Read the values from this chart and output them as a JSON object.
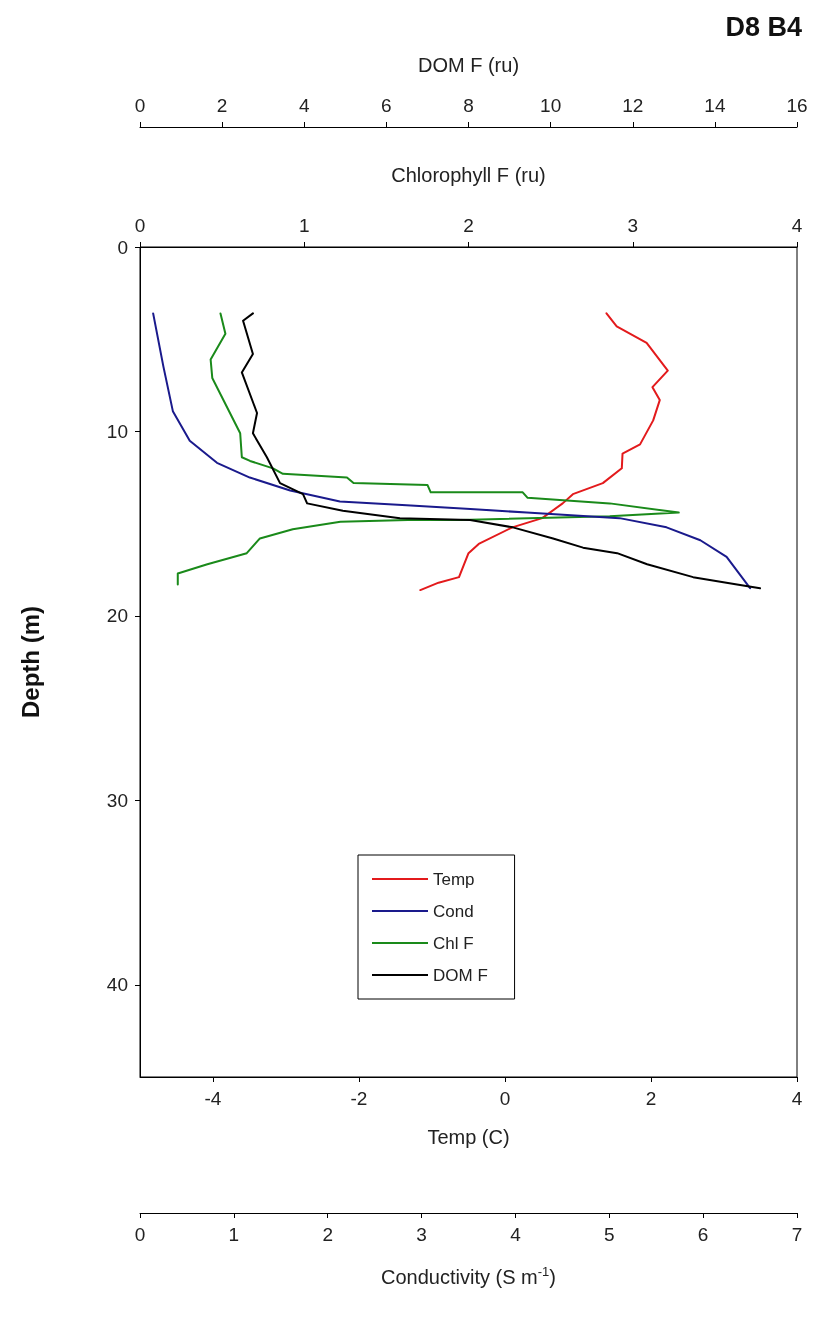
{
  "chart_data": [
    {
      "type": "line",
      "title": "D8 B4",
      "ylabel": "Depth (m)",
      "ylim": [
        45,
        0
      ],
      "yticks": [
        0,
        10,
        20,
        30,
        40
      ],
      "xlabel": "Temp (C)",
      "xlim": [
        -5,
        4
      ],
      "xticks": [
        -4,
        -2,
        0,
        2,
        4
      ],
      "x2label": "Chlorophyll F (ru)",
      "x2lim": [
        0,
        4
      ],
      "x2ticks": [
        0,
        1,
        2,
        3,
        4
      ],
      "legend": "bottom",
      "series": [
        {
          "name": "Temp",
          "color": "#e31a1c",
          "x": [
            1.39,
            1.53,
            1.94,
            2.23,
            2.02,
            2.12,
            2.03,
            1.85,
            1.61,
            1.6,
            1.34,
            0.93,
            0.79,
            0.51,
            0.1,
            -0.36,
            -0.5,
            -0.63,
            -0.91,
            -1.16
          ],
          "values": [
            3.6,
            4.3,
            5.2,
            6.7,
            7.6,
            8.3,
            9.4,
            10.7,
            11.2,
            12.0,
            12.8,
            13.4,
            13.9,
            14.7,
            15.2,
            16.1,
            16.6,
            17.9,
            18.2,
            18.6
          ]
        },
        {
          "name": "Chl F",
          "color": "#1a8a1a",
          "axis": "x2",
          "x": [
            0.49,
            0.52,
            0.43,
            0.44,
            0.61,
            0.62,
            0.67,
            0.81,
            0.87,
            1.26,
            1.3,
            1.75,
            1.77,
            2.01,
            2.33,
            2.36,
            2.86,
            3.28,
            2.86,
            1.95,
            1.63,
            1.22,
            0.93,
            0.73,
            0.65,
            0.41,
            0.23,
            0.23
          ],
          "values": [
            3.6,
            4.7,
            6.1,
            7.1,
            10.1,
            11.4,
            11.6,
            12.0,
            12.3,
            12.5,
            12.8,
            12.9,
            13.3,
            13.3,
            13.3,
            13.6,
            13.9,
            14.4,
            14.6,
            14.8,
            14.8,
            14.9,
            15.3,
            15.8,
            16.6,
            17.2,
            17.7,
            18.3
          ]
        }
      ]
    },
    {
      "type": "line",
      "tick_labels": "x",
      "ylim": [
        45,
        0
      ],
      "xlabel": "Conductivity (S m$^{-1}$)",
      "xlim": [
        0,
        7
      ],
      "xticks": [
        0,
        1,
        2,
        3,
        4,
        5,
        6,
        7
      ],
      "x2label": "DOM F (ru)",
      "x2lim": [
        0,
        16
      ],
      "x2ticks": [
        0,
        2,
        4,
        6,
        8,
        10,
        12,
        14,
        16
      ],
      "legend": "bottom",
      "series": [
        {
          "name": "Cond",
          "color": "#1a1a8c",
          "x": [
            0.14,
            0.25,
            0.35,
            0.53,
            0.82,
            1.17,
            1.6,
            2.13,
            2.84,
            3.52,
            4.12,
            5.11,
            5.61,
            5.97,
            6.25,
            6.5
          ],
          "values": [
            3.6,
            6.5,
            8.9,
            10.5,
            11.7,
            12.5,
            13.2,
            13.8,
            14.0,
            14.2,
            14.4,
            14.7,
            15.2,
            15.9,
            16.8,
            18.5
          ]
        },
        {
          "name": "DOM F",
          "color": "#000000",
          "axis": "x2",
          "x": [
            2.75,
            2.51,
            2.75,
            2.48,
            2.85,
            2.75,
            3.09,
            3.41,
            3.97,
            4.07,
            4.94,
            6.33,
            8.04,
            9.08,
            10.06,
            10.79,
            11.62,
            12.35,
            13.47,
            14.54,
            15.1
          ],
          "values": [
            3.6,
            4.0,
            5.8,
            6.8,
            9.0,
            10.1,
            11.4,
            12.8,
            13.4,
            13.9,
            14.3,
            14.7,
            14.8,
            15.2,
            15.8,
            16.3,
            16.6,
            17.2,
            17.9,
            18.3,
            18.5
          ]
        }
      ]
    }
  ]
}
